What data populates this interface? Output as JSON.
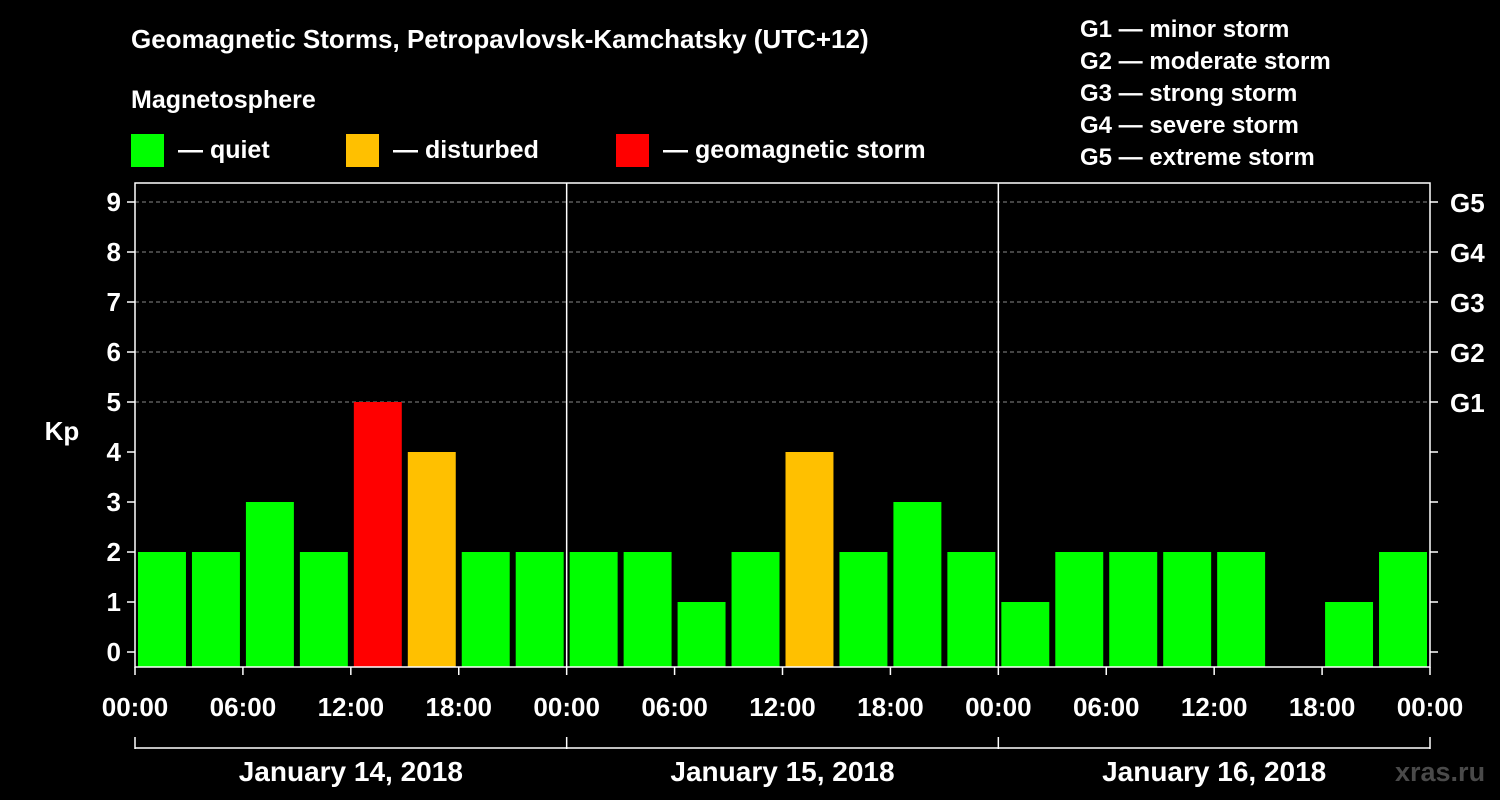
{
  "header": {
    "title": "Geomagnetic Storms, Petropavlovsk-Kamchatsky (UTC+12)",
    "subtitle": "Magnetosphere"
  },
  "legend": [
    {
      "label": "— quiet",
      "color": "#00ff00"
    },
    {
      "label": "— disturbed",
      "color": "#ffc000"
    },
    {
      "label": "— geomagnetic storm",
      "color": "#ff0000"
    }
  ],
  "storm_scale": [
    "G1 — minor storm",
    "G2 — moderate storm",
    "G3 — strong storm",
    "G4 — severe storm",
    "G5 — extreme storm"
  ],
  "watermark": "xras.ru",
  "chart_data": {
    "type": "bar",
    "ylabel": "Kp",
    "ylim": [
      0,
      9
    ],
    "y_ticks": [
      "0",
      "1",
      "2",
      "3",
      "4",
      "5",
      "6",
      "7",
      "8",
      "9"
    ],
    "right_ticks": [
      {
        "kp": 5,
        "label": "G1"
      },
      {
        "kp": 6,
        "label": "G2"
      },
      {
        "kp": 7,
        "label": "G3"
      },
      {
        "kp": 8,
        "label": "G4"
      },
      {
        "kp": 9,
        "label": "G5"
      }
    ],
    "grid": true,
    "x_tick_labels": [
      "00:00",
      "06:00",
      "12:00",
      "18:00",
      "00:00",
      "06:00",
      "12:00",
      "18:00",
      "00:00",
      "06:00",
      "12:00",
      "18:00",
      "00:00"
    ],
    "days": [
      "January 14, 2018",
      "January 15, 2018",
      "January 16, 2018"
    ],
    "interval_hours": 3,
    "values": [
      2,
      2,
      3,
      2,
      5,
      4,
      2,
      2,
      2,
      2,
      1,
      2,
      4,
      2,
      3,
      2,
      1,
      2,
      2,
      2,
      2,
      0,
      1,
      2
    ],
    "colors": {
      "quiet": "#00ff00",
      "disturbed": "#ffc000",
      "storm": "#ff0000"
    }
  }
}
